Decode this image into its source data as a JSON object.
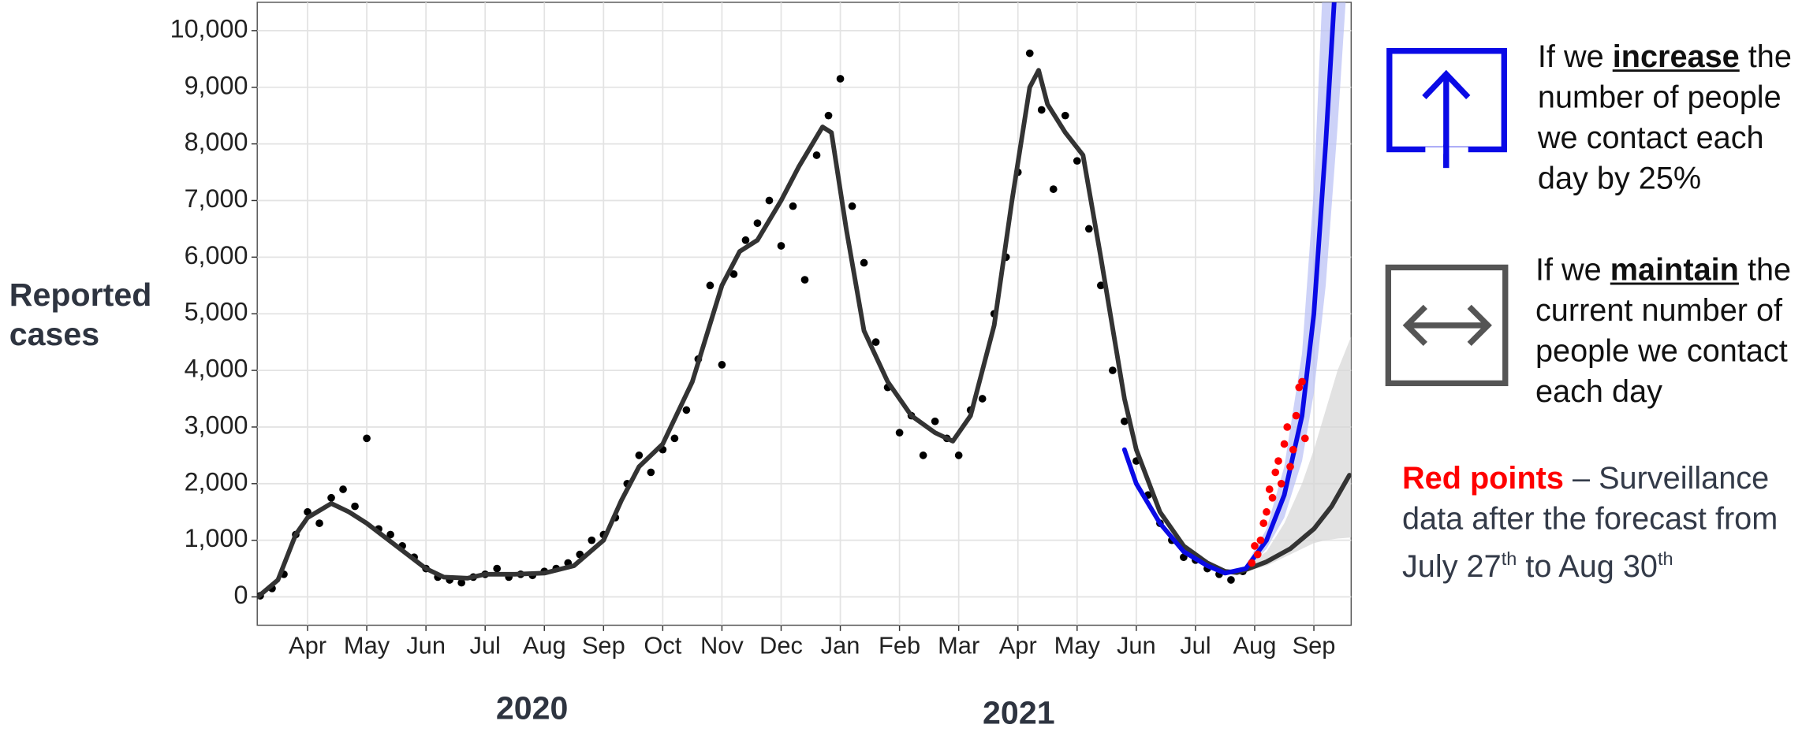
{
  "chart_data": {
    "type": "line",
    "ylabel": "Reported cases",
    "xlim": [
      0.15,
      18.63
    ],
    "xticks": [
      {
        "value": 1,
        "label": "Apr"
      },
      {
        "value": 2,
        "label": "May"
      },
      {
        "value": 3,
        "label": "Jun"
      },
      {
        "value": 4,
        "label": "Jul"
      },
      {
        "value": 5,
        "label": "Aug"
      },
      {
        "value": 6,
        "label": "Sep"
      },
      {
        "value": 7,
        "label": "Oct"
      },
      {
        "value": 8,
        "label": "Nov"
      },
      {
        "value": 9,
        "label": "Dec"
      },
      {
        "value": 10,
        "label": "Jan"
      },
      {
        "value": 11,
        "label": "Feb"
      },
      {
        "value": 12,
        "label": "Mar"
      },
      {
        "value": 13,
        "label": "Apr"
      },
      {
        "value": 14,
        "label": "May"
      },
      {
        "value": 15,
        "label": "Jun"
      },
      {
        "value": 16,
        "label": "Jul"
      },
      {
        "value": 17,
        "label": "Aug"
      },
      {
        "value": 18,
        "label": "Sep"
      }
    ],
    "year_labels": [
      "2020",
      "2021"
    ],
    "ylim": [
      -500,
      10500
    ],
    "yticks": [
      0,
      {
        "value": 1000,
        "label": "1,000"
      },
      {
        "value": 2000,
        "label": "2,000"
      },
      {
        "value": 3000,
        "label": "3,000"
      },
      {
        "value": 4000,
        "label": "4,000"
      },
      {
        "value": 5000,
        "label": "5,000"
      },
      {
        "value": 6000,
        "label": "6,000"
      },
      {
        "value": 7000,
        "label": "7,000"
      },
      {
        "value": 8000,
        "label": "8,000"
      },
      {
        "value": 9000,
        "label": "9,000"
      },
      {
        "value": 10000,
        "label": "10,000"
      }
    ],
    "grid": true,
    "bands": [
      {
        "color": "#b8bff5",
        "x": [
          16.85,
          17.2,
          17.5,
          17.8,
          18.0,
          18.2,
          18.4,
          18.63
        ],
        "lower": [
          450,
          850,
          1400,
          2400,
          3600,
          5500,
          8300,
          12000
        ],
        "upper": [
          550,
          1200,
          2300,
          4300,
          7200,
          12000,
          16000,
          20000
        ]
      },
      {
        "color": "#d6d6d6",
        "x": [
          16.85,
          17.2,
          17.5,
          17.8,
          18.0,
          18.2,
          18.4,
          18.63
        ],
        "lower": [
          450,
          550,
          700,
          850,
          950,
          1000,
          1030,
          1050
        ],
        "upper": [
          550,
          800,
          1300,
          2000,
          2600,
          3300,
          4000,
          4600
        ]
      }
    ],
    "series": [
      {
        "mode": "points",
        "color": "#000000",
        "x": [
          0.2,
          0.4,
          0.6,
          0.8,
          1.0,
          1.2,
          1.4,
          1.6,
          1.8,
          2.0,
          2.2,
          2.4,
          2.6,
          2.8,
          3.0,
          3.2,
          3.4,
          3.6,
          3.8,
          4.0,
          4.2,
          4.4,
          4.6,
          4.8,
          5.0,
          5.2,
          5.4,
          5.6,
          5.8,
          6.0,
          6.2,
          6.4,
          6.6,
          6.8,
          7.0,
          7.2,
          7.4,
          7.6,
          7.8,
          8.0,
          8.2,
          8.4,
          8.6,
          8.8,
          9.0,
          9.2,
          9.4,
          9.6,
          9.8,
          10.0,
          10.2,
          10.4,
          10.6,
          10.8,
          11.0,
          11.2,
          11.4,
          11.6,
          11.8,
          12.0,
          12.2,
          12.4,
          12.6,
          12.8,
          13.0,
          13.2,
          13.4,
          13.6,
          13.8,
          14.0,
          14.2,
          14.4,
          14.6,
          14.8,
          15.0,
          15.2,
          15.4,
          15.6,
          15.8,
          16.0,
          16.2,
          16.4,
          16.6,
          16.8
        ],
        "values": [
          20,
          150,
          400,
          1100,
          1500,
          1300,
          1750,
          1900,
          1600,
          2800,
          1200,
          1100,
          900,
          700,
          500,
          350,
          300,
          250,
          350,
          400,
          500,
          350,
          400,
          380,
          450,
          500,
          600,
          750,
          1000,
          1100,
          1400,
          2000,
          2500,
          2200,
          2600,
          2800,
          3300,
          4200,
          5500,
          4100,
          5700,
          6300,
          6600,
          7000,
          6200,
          6900,
          5600,
          7800,
          8500,
          9150,
          6900,
          5900,
          4500,
          3700,
          2900,
          3200,
          2500,
          3100,
          2800,
          2500,
          3300,
          3500,
          5000,
          6000,
          7500,
          9600,
          8600,
          7200,
          8500,
          7700,
          6500,
          5500,
          4000,
          3100,
          2400,
          1800,
          1300,
          1000,
          700,
          650,
          500,
          400,
          300,
          450
        ]
      },
      {
        "mode": "line",
        "color": "#333333",
        "x": [
          0.16,
          0.5,
          0.8,
          1.0,
          1.4,
          1.7,
          2.0,
          2.5,
          3.0,
          3.3,
          3.7,
          4.0,
          4.5,
          5.0,
          5.5,
          6.0,
          6.3,
          6.6,
          7.0,
          7.5,
          8.0,
          8.3,
          8.6,
          9.0,
          9.3,
          9.7,
          9.85,
          10.1,
          10.4,
          10.8,
          11.2,
          11.6,
          11.9,
          12.2,
          12.6,
          12.9,
          13.2,
          13.35,
          13.5,
          13.8,
          14.1,
          14.4,
          14.8,
          15.0,
          15.4,
          15.8,
          16.2,
          16.5,
          16.7,
          16.85,
          17.2,
          17.6,
          18.0,
          18.3,
          18.6
        ],
        "values": [
          0,
          300,
          1100,
          1400,
          1650,
          1500,
          1300,
          900,
          500,
          350,
          330,
          400,
          400,
          420,
          550,
          1000,
          1700,
          2300,
          2700,
          3800,
          5500,
          6100,
          6300,
          7000,
          7600,
          8300,
          8200,
          6500,
          4700,
          3800,
          3200,
          2900,
          2750,
          3200,
          4800,
          7000,
          9000,
          9300,
          8700,
          8200,
          7800,
          6000,
          3500,
          2600,
          1500,
          900,
          600,
          450,
          430,
          480,
          620,
          850,
          1200,
          1600,
          2150
        ]
      },
      {
        "mode": "line",
        "color": "#0a0ae6",
        "x": [
          14.8,
          15.0,
          15.4,
          15.8,
          16.2,
          16.5,
          16.85,
          17.2,
          17.5,
          17.8,
          18.0,
          18.2,
          18.4
        ],
        "values": [
          2600,
          2000,
          1300,
          800,
          550,
          420,
          500,
          1000,
          1800,
          3200,
          5000,
          8000,
          11500
        ]
      },
      {
        "mode": "points",
        "color": "#ff0000",
        "x": [
          16.95,
          17.0,
          17.05,
          17.1,
          17.15,
          17.2,
          17.25,
          17.3,
          17.35,
          17.4,
          17.45,
          17.5,
          17.55,
          17.6,
          17.65,
          17.7,
          17.75,
          17.8,
          17.85
        ],
        "values": [
          600,
          900,
          750,
          1000,
          1300,
          1500,
          1900,
          1750,
          2200,
          2400,
          2000,
          2700,
          3000,
          2300,
          2600,
          3200,
          3700,
          3800,
          2800
        ]
      }
    ],
    "annotations": [
      {
        "before": "If we ",
        "emphasis": "increase",
        "after": " the number of people we contact each day by 25%"
      },
      {
        "before": "If we ",
        "emphasis": "maintain",
        "after": " the current number of people we contact each day"
      }
    ],
    "note": {
      "highlight": "Red points",
      "text": " – Surveillance data after the forecast from July 27",
      "sup1": "th",
      "text2": " to Aug 30",
      "sup2": "th"
    }
  }
}
